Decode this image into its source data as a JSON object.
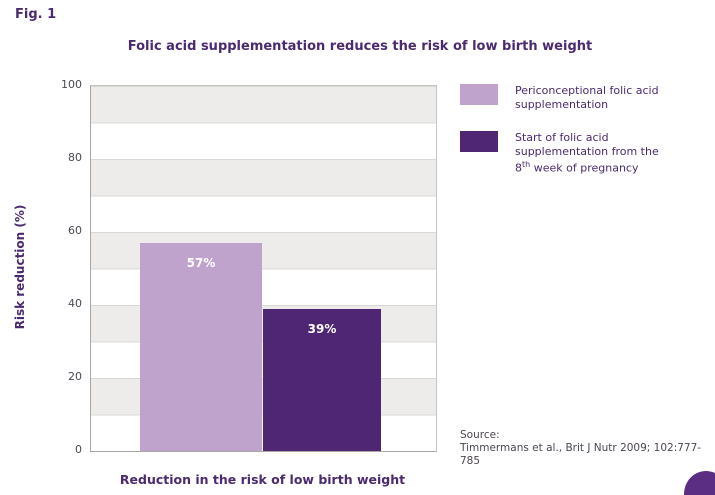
{
  "page": {
    "fig_label": "Fig. 1"
  },
  "chart_data": {
    "type": "bar",
    "title": "Folic acid supplementation reduces the risk of low birth weight",
    "categories": [
      "Periconceptional folic acid supplementation",
      "Start of folic acid supplementation from the 8th week of pregnancy"
    ],
    "values": [
      57,
      39
    ],
    "bar_labels": [
      "57%",
      "39%"
    ],
    "xlabel": "Reduction in the risk of low birth weight",
    "ylabel": "Risk reduction (%)",
    "ylim": [
      0,
      100
    ],
    "y_ticks": [
      0,
      20,
      40,
      60,
      80,
      100
    ],
    "grid": "alternating horizontal bands",
    "legend_position": "top-right",
    "colors": [
      "#bfa3cd",
      "#4f2674"
    ]
  },
  "legend": {
    "items": [
      {
        "swatch_color": "#bfa3cd",
        "lines": [
          {
            "text": "Periconceptional folic acid"
          },
          {
            "text": "supplementation"
          }
        ]
      },
      {
        "swatch_color": "#4f2674",
        "lines": [
          {
            "text": "Start of folic acid"
          },
          {
            "text": "supplementation from the"
          },
          {
            "pre": "8",
            "sup": "th",
            "post": " week of pregnancy"
          }
        ]
      }
    ]
  },
  "source": {
    "label": "Source:",
    "citation": "Timmermans et al., Brit J Nutr 2009; 102:777-785"
  }
}
